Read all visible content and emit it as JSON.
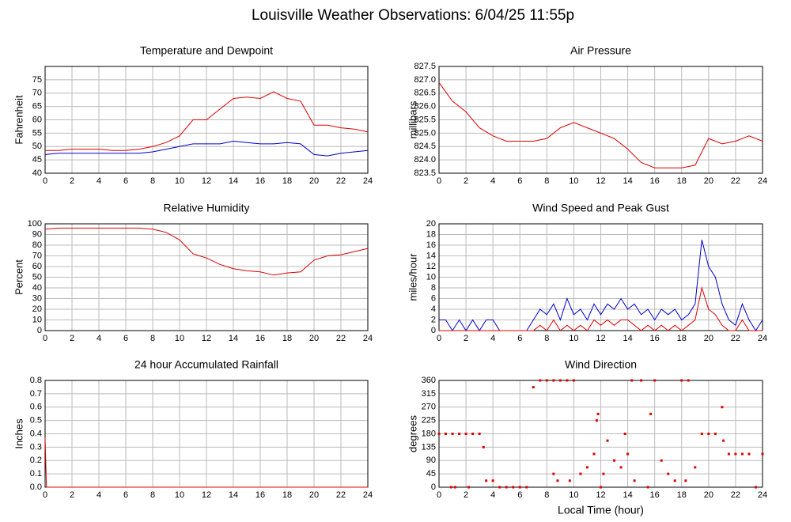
{
  "title": "Louisville Weather Observations: 6/04/25 11:55p",
  "chart_data": [
    {
      "type": "line",
      "title": "Temperature and Dewpoint",
      "ylabel": "Fahrenheit",
      "x": [
        0,
        1,
        2,
        3,
        4,
        5,
        6,
        7,
        8,
        9,
        10,
        11,
        12,
        13,
        14,
        15,
        16,
        17,
        18,
        19,
        20,
        21,
        22,
        23,
        24
      ],
      "series": [
        {
          "name": "Temperature",
          "color": "#e00000",
          "values": [
            48.5,
            48.5,
            49,
            49,
            49,
            48.5,
            48.5,
            49,
            50,
            51.5,
            54,
            60,
            60,
            64,
            68,
            68.5,
            68,
            70.5,
            68,
            67,
            58,
            58,
            57,
            56.5,
            55.5
          ]
        },
        {
          "name": "Dewpoint",
          "color": "#0000d0",
          "values": [
            47,
            47.5,
            47.5,
            47.5,
            47.5,
            47.5,
            47.5,
            47.5,
            48,
            49,
            50,
            51,
            51,
            51,
            52,
            51.5,
            51,
            51,
            51.5,
            51,
            47,
            46.5,
            47.5,
            48,
            48.5
          ]
        }
      ],
      "xlim": [
        0,
        24
      ],
      "xticks": [
        0,
        2,
        4,
        6,
        8,
        10,
        12,
        14,
        16,
        18,
        20,
        22,
        24
      ],
      "ylim": [
        40,
        80
      ],
      "yticks": [
        40,
        45,
        50,
        55,
        60,
        65,
        70,
        75
      ],
      "grid": true
    },
    {
      "type": "line",
      "title": "Air Pressure",
      "ylabel": "millibars",
      "x": [
        0,
        1,
        2,
        3,
        4,
        5,
        6,
        7,
        8,
        9,
        10,
        11,
        12,
        13,
        14,
        15,
        16,
        17,
        18,
        19,
        20,
        21,
        22,
        23,
        24
      ],
      "series": [
        {
          "name": "Air Pressure",
          "color": "#e00000",
          "values": [
            826.9,
            826.2,
            825.8,
            825.2,
            824.9,
            824.7,
            824.7,
            824.7,
            824.8,
            825.2,
            825.4,
            825.2,
            825.0,
            824.8,
            824.4,
            823.9,
            823.7,
            823.7,
            823.7,
            823.8,
            824.8,
            824.6,
            824.7,
            824.9,
            824.7
          ]
        }
      ],
      "xlim": [
        0,
        24
      ],
      "xticks": [
        0,
        2,
        4,
        6,
        8,
        10,
        12,
        14,
        16,
        18,
        20,
        22,
        24
      ],
      "ylim": [
        823.5,
        827.5
      ],
      "yticks": [
        823.5,
        {
          "value": 824,
          "label": "824.0"
        },
        824.5,
        {
          "value": 825,
          "label": "825.0"
        },
        825.5,
        {
          "value": 826,
          "label": "826.0"
        },
        826.5,
        {
          "value": 827,
          "label": "827.0"
        },
        827.5
      ],
      "grid": true
    },
    {
      "type": "line",
      "title": "Relative Humidity",
      "ylabel": "Percent",
      "x": [
        0,
        1,
        2,
        3,
        4,
        5,
        6,
        7,
        8,
        9,
        10,
        11,
        12,
        13,
        14,
        15,
        16,
        17,
        18,
        19,
        20,
        21,
        22,
        23,
        24
      ],
      "series": [
        {
          "name": "Relative Humidity",
          "color": "#e00000",
          "values": [
            95,
            96,
            96,
            96,
            96,
            96,
            96,
            96,
            95,
            92,
            85,
            72,
            68,
            62,
            58,
            56,
            55,
            52,
            54,
            55,
            66,
            70,
            71,
            74,
            77
          ]
        }
      ],
      "xlim": [
        0,
        24
      ],
      "xticks": [
        0,
        2,
        4,
        6,
        8,
        10,
        12,
        14,
        16,
        18,
        20,
        22,
        24
      ],
      "ylim": [
        0,
        100
      ],
      "yticks": [
        0,
        10,
        20,
        30,
        40,
        50,
        60,
        70,
        80,
        90,
        100
      ],
      "grid": true
    },
    {
      "type": "line",
      "title": "Wind Speed and Peak Gust",
      "ylabel": "miles/hour",
      "x": [
        0,
        0.5,
        1,
        1.5,
        2,
        2.5,
        3,
        3.5,
        4,
        4.5,
        5,
        5.5,
        6,
        6.5,
        7,
        7.5,
        8,
        8.5,
        9,
        9.5,
        10,
        10.5,
        11,
        11.5,
        12,
        12.5,
        13,
        13.5,
        14,
        14.5,
        15,
        15.5,
        16,
        16.5,
        17,
        17.5,
        18,
        18.5,
        19,
        19.5,
        20,
        20.5,
        21,
        21.5,
        22,
        22.5,
        23,
        23.5,
        24
      ],
      "series": [
        {
          "name": "Wind Speed",
          "color": "#0000d0",
          "values": [
            2,
            2,
            0,
            2,
            0,
            2,
            0,
            2,
            2,
            0,
            0,
            0,
            0,
            0,
            2,
            4,
            3,
            5,
            2,
            6,
            3,
            4,
            2,
            5,
            3,
            5,
            4,
            6,
            4,
            5,
            3,
            4,
            2,
            4,
            3,
            4,
            2,
            3,
            5,
            17,
            12,
            10,
            5,
            2,
            1,
            5,
            2,
            0,
            2
          ]
        },
        {
          "name": "Peak Gust",
          "color": "#e00000",
          "values": [
            0,
            0,
            0,
            0,
            0,
            0,
            0,
            0,
            0,
            0,
            0,
            0,
            0,
            0,
            0,
            1,
            0,
            2,
            0,
            1,
            0,
            1,
            0,
            2,
            1,
            2,
            1,
            2,
            2,
            1,
            0,
            1,
            0,
            1,
            0,
            1,
            0,
            1,
            2,
            8,
            4,
            3,
            1,
            0,
            0,
            2,
            0,
            0,
            0
          ]
        }
      ],
      "xlim": [
        0,
        24
      ],
      "xticks": [
        0,
        2,
        4,
        6,
        8,
        10,
        12,
        14,
        16,
        18,
        20,
        22,
        24
      ],
      "ylim": [
        0,
        20
      ],
      "yticks": [
        0,
        2,
        4,
        6,
        8,
        10,
        12,
        14,
        16,
        18,
        20
      ],
      "grid": true
    },
    {
      "type": "line",
      "title": "24 hour Accumulated Rainfall",
      "ylabel": "Inches",
      "x": [
        0,
        0.1,
        24
      ],
      "series": [
        {
          "name": "Rainfall",
          "color": "#e00000",
          "values": [
            0.37,
            0,
            0
          ]
        }
      ],
      "xlim": [
        0,
        24
      ],
      "xticks": [
        0,
        2,
        4,
        6,
        8,
        10,
        12,
        14,
        16,
        18,
        20,
        22,
        24
      ],
      "ylim": [
        0,
        0.8
      ],
      "yticks": [
        {
          "value": 0,
          "label": "0.0"
        },
        0.1,
        0.2,
        0.3,
        0.4,
        0.5,
        0.6,
        0.7,
        0.8
      ],
      "grid": true
    },
    {
      "type": "scatter",
      "title": "Wind Direction",
      "ylabel": "degrees",
      "xlabel": "Local Time (hour)",
      "color": "#e00000",
      "x": [
        0,
        0.5,
        1,
        1.5,
        2,
        2.5,
        0.9,
        1.2,
        2.2,
        3,
        3.3,
        3.5,
        4,
        4.5,
        5,
        5.5,
        6,
        6.5,
        7,
        7.5,
        8,
        8.5,
        8.5,
        8.8,
        9,
        9.5,
        9.7,
        10,
        10.5,
        11,
        11.5,
        11.7,
        11.8,
        12,
        12.2,
        12.5,
        13,
        13.5,
        13.8,
        14,
        14.3,
        14.5,
        15,
        15.5,
        15.7,
        16,
        16.5,
        17,
        17.5,
        18,
        18.3,
        18.5,
        19,
        19.5,
        20,
        20.5,
        21,
        21.1,
        21.5,
        22,
        22.5,
        23,
        23.5,
        24
      ],
      "values": [
        180,
        180,
        180,
        180,
        180,
        180,
        0,
        0,
        0,
        180,
        135,
        22,
        22,
        0,
        0,
        0,
        0,
        0,
        337,
        360,
        360,
        360,
        45,
        22,
        360,
        360,
        22,
        360,
        45,
        67,
        112,
        225,
        247,
        0,
        45,
        157,
        90,
        67,
        180,
        112,
        360,
        22,
        360,
        0,
        247,
        360,
        90,
        45,
        22,
        360,
        22,
        360,
        67,
        180,
        180,
        180,
        270,
        157,
        112,
        112,
        112,
        112,
        0,
        112
      ],
      "xlim": [
        0,
        24
      ],
      "xticks": [
        0,
        2,
        4,
        6,
        8,
        10,
        12,
        14,
        16,
        18,
        20,
        22,
        24
      ],
      "ylim": [
        0,
        360
      ],
      "yticks": [
        0,
        45,
        90,
        135,
        180,
        225,
        270,
        315,
        360
      ],
      "grid": true
    }
  ]
}
